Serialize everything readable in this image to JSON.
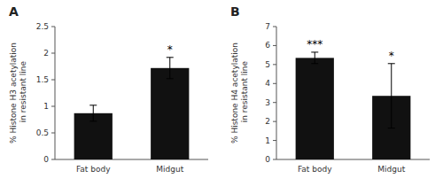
{
  "chart_data": [
    {
      "type": "bar",
      "title": "A",
      "categories": [
        "Fat body",
        "Midgut"
      ],
      "values": [
        0.87,
        1.72
      ],
      "errors": [
        0.15,
        0.2
      ],
      "annotations": [
        null,
        "*"
      ],
      "ylabel": "% Histone H3 acetylation in resistant line",
      "ylim": [
        0,
        2.5
      ],
      "yticks": [
        0,
        0.5,
        1,
        1.5,
        2,
        2.5
      ],
      "color": "#111111"
    },
    {
      "type": "bar",
      "title": "B",
      "categories": [
        "Fat body",
        "Midgut"
      ],
      "values": [
        5.35,
        3.35
      ],
      "errors": [
        0.3,
        1.7
      ],
      "annotations": [
        "***",
        "*"
      ],
      "ylabel": "% Histone H4 acetylation in resistant line",
      "ylim": [
        0,
        7
      ],
      "yticks": [
        0,
        1,
        2,
        3,
        4,
        5,
        6,
        7
      ],
      "color": "#111111"
    }
  ]
}
